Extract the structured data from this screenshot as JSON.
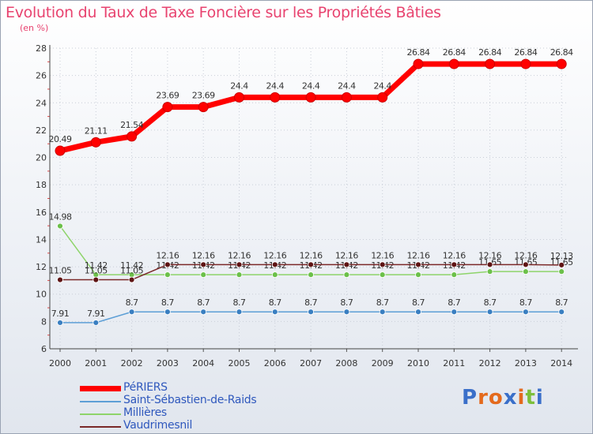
{
  "title": "Evolution du Taux de Taxe Foncière sur les Propriétés Bâties",
  "unit_label": "(en %)",
  "chart_data": {
    "type": "line",
    "title": "Evolution du Taux de Taxe Foncière sur les Propriétés Bâties",
    "xlabel": "",
    "ylabel": "(en %)",
    "x": [
      "2000",
      "2001",
      "2002",
      "2003",
      "2004",
      "2005",
      "2006",
      "2007",
      "2008",
      "2009",
      "2010",
      "2011",
      "2012",
      "2013",
      "2014"
    ],
    "ylim": [
      6,
      28
    ],
    "yticks": [
      "6",
      "8",
      "10",
      "12",
      "14",
      "16",
      "18",
      "20",
      "22",
      "24",
      "26",
      "28"
    ],
    "grid": true,
    "series": [
      {
        "name": "PéRIERS",
        "color": "#ff0000",
        "marker_color": "#ff0000",
        "emphasis": true,
        "values": [
          20.49,
          21.11,
          21.54,
          23.69,
          23.69,
          24.4,
          24.4,
          24.4,
          24.4,
          24.4,
          26.84,
          26.84,
          26.84,
          26.84,
          26.84
        ],
        "labels": [
          "20.49",
          "21.11",
          "21.54",
          "23.69",
          "23.69",
          "24.4",
          "24.4",
          "24.4",
          "24.4",
          "24.4",
          "26.84",
          "26.84",
          "26.84",
          "26.84",
          "26.84"
        ]
      },
      {
        "name": "Saint-Sébastien-de-Raids",
        "color": "#5d9fd6",
        "marker_color": "#3a7fc1",
        "values": [
          7.91,
          7.91,
          8.7,
          8.7,
          8.7,
          8.7,
          8.7,
          8.7,
          8.7,
          8.7,
          8.7,
          8.7,
          8.7,
          8.7,
          8.7
        ],
        "labels": [
          "7.91",
          "7.91",
          "8.7",
          "8.7",
          "8.7",
          "8.7",
          "8.7",
          "8.7",
          "8.7",
          "8.7",
          "8.7",
          "8.7",
          "8.7",
          "8.7",
          "8.7"
        ]
      },
      {
        "name": "Millières",
        "color": "#8ed46a",
        "marker_color": "#6cc04a",
        "values": [
          14.98,
          11.42,
          11.42,
          11.42,
          11.42,
          11.42,
          11.42,
          11.42,
          11.42,
          11.42,
          11.42,
          11.42,
          11.65,
          11.65,
          11.65
        ],
        "labels": [
          "14.98",
          "11.42",
          "11.42",
          "11.42",
          "11.42",
          "11.42",
          "11.42",
          "11.42",
          "11.42",
          "11.42",
          "11.42",
          "11.42",
          "11.65",
          "11.65",
          "11.65"
        ]
      },
      {
        "name": "Vaudrimesnil",
        "color": "#7a2828",
        "marker_color": "#5e1414",
        "values": [
          11.05,
          11.05,
          11.05,
          12.16,
          12.16,
          12.16,
          12.16,
          12.16,
          12.16,
          12.16,
          12.16,
          12.16,
          12.16,
          12.16,
          12.13
        ],
        "labels": [
          "11.05",
          "11.05",
          "11.05",
          "12.16",
          "12.16",
          "12.16",
          "12.16",
          "12.16",
          "12.16",
          "12.16",
          "12.16",
          "12.16",
          "12.16",
          "12.16",
          "12.13"
        ]
      }
    ]
  },
  "brand": {
    "text": "Proxiti",
    "letters": [
      "P",
      "r",
      "o",
      "x",
      "i",
      "t",
      "i"
    ],
    "colors": [
      "#3a6fc9",
      "#e46a1d",
      "#e46a1d",
      "#3a6fc9",
      "#e46a1d",
      "#7cbf3a",
      "#3a6fc9"
    ]
  }
}
